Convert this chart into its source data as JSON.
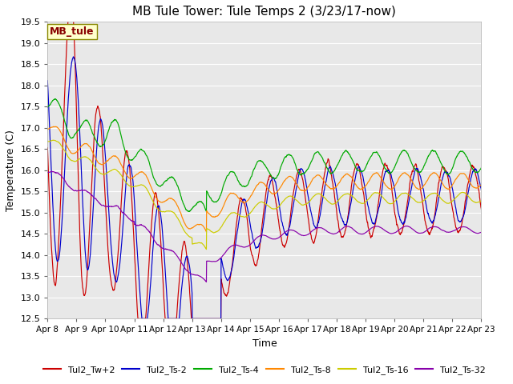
{
  "title": "MB Tule Tower: Tule Temps 2 (3/23/17-now)",
  "xlabel": "Time",
  "ylabel": "Temperature (C)",
  "ylim": [
    12.5,
    19.5
  ],
  "xlim": [
    0,
    15
  ],
  "xtick_labels": [
    "Apr 8",
    "Apr 9",
    "Apr 10",
    "Apr 11",
    "Apr 12",
    "Apr 13",
    "Apr 14",
    "Apr 15",
    "Apr 16",
    "Apr 17",
    "Apr 18",
    "Apr 19",
    "Apr 20",
    "Apr 21",
    "Apr 22",
    "Apr 23"
  ],
  "xtick_positions": [
    0,
    1,
    2,
    3,
    4,
    5,
    6,
    7,
    8,
    9,
    10,
    11,
    12,
    13,
    14,
    15
  ],
  "series_names": [
    "Tul2_Tw+2",
    "Tul2_Ts-2",
    "Tul2_Ts-4",
    "Tul2_Ts-8",
    "Tul2_Ts-16",
    "Tul2_Ts-32"
  ],
  "series_colors": [
    "#cc0000",
    "#0000cc",
    "#00aa00",
    "#ff8800",
    "#cccc00",
    "#8800aa"
  ],
  "legend_label": "MB_tule",
  "fig_bg": "#ffffff",
  "plot_bg": "#e8e8e8",
  "grid_color": "#ffffff",
  "title_fontsize": 11,
  "axis_fontsize": 9,
  "tick_fontsize": 8,
  "legend_fontsize": 8
}
